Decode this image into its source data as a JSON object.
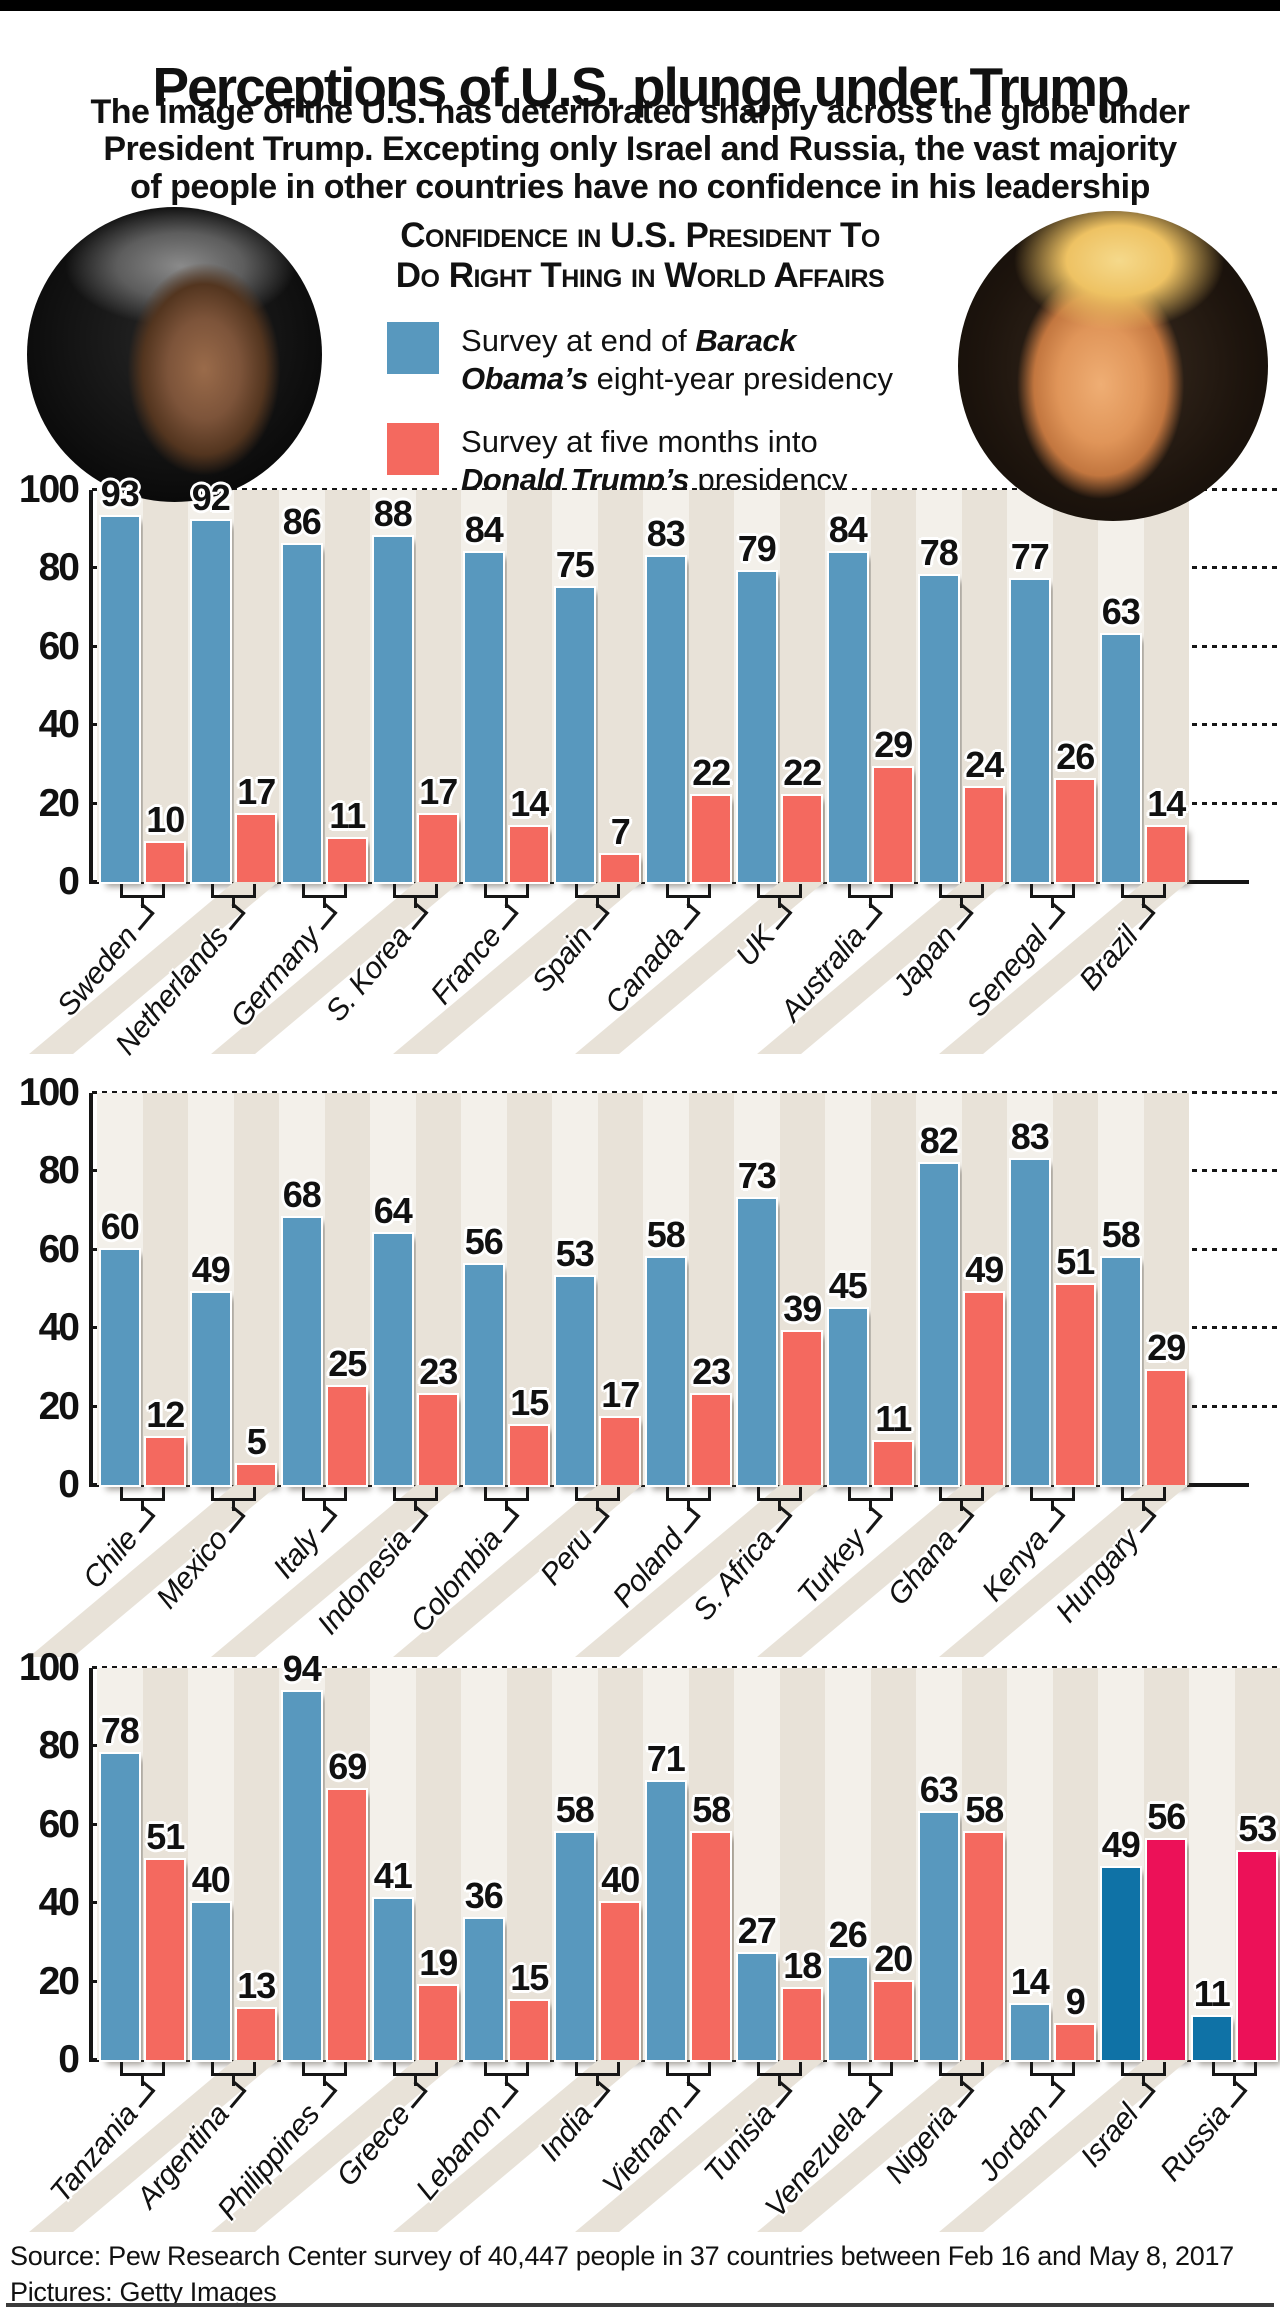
{
  "header": {
    "title": "Perceptions of U.S. plunge under Trump",
    "subtitle_lines": [
      "The image of the U.S. has deteriorated sharply across the globe under",
      "President Trump. Excepting only Israel and Russia, the vast majority",
      "of people in other countries have no confidence in his leadership"
    ],
    "chart_heading_line1": "Confidence in U.S. President To",
    "chart_heading_line2": "Do Right Thing in World Affairs",
    "photo_left": "Barack Obama photo",
    "photo_right": "Donald Trump photo"
  },
  "legend": {
    "items": [
      {
        "swatch_color": "#5898BE",
        "line1": "Survey at end of",
        "line1_bold": "Barack",
        "line2_bold": "Obama’s",
        "line2": "eight-year presidency"
      },
      {
        "swatch_color": "#F4695F",
        "line1": "Survey at five months into",
        "line1_bold": "",
        "line2_bold": "Donald Trump’s",
        "line2": "presidency"
      }
    ]
  },
  "chart_data": [
    {
      "type": "bar",
      "title": "Confidence in U.S. president to do right thing in world affairs (panel 1)",
      "categories": [
        "Sweden",
        "Netherlands",
        "Germany",
        "S. Korea",
        "France",
        "Spain",
        "Canada",
        "UK",
        "Australia",
        "Japan",
        "Senegal",
        "Brazil"
      ],
      "series": [
        {
          "name": "Survey at end of Barack Obama’s eight-year presidency",
          "values": [
            93,
            92,
            86,
            88,
            84,
            75,
            83,
            79,
            84,
            78,
            77,
            63
          ]
        },
        {
          "name": "Survey at five months into Donald Trump’s presidency",
          "values": [
            10,
            17,
            11,
            17,
            14,
            7,
            22,
            22,
            29,
            24,
            26,
            14
          ]
        }
      ],
      "ylim": [
        0,
        100
      ],
      "yticks": [
        0,
        20,
        40,
        60,
        80,
        100
      ],
      "grid": "dotted horizontal",
      "legend_position": "top",
      "highlight_categories": []
    },
    {
      "type": "bar",
      "title": "Confidence in U.S. president to do right thing in world affairs (panel 2)",
      "categories": [
        "Chile",
        "Mexico",
        "Italy",
        "Indonesia",
        "Colombia",
        "Peru",
        "Poland",
        "S. Africa",
        "Turkey",
        "Ghana",
        "Kenya",
        "Hungary"
      ],
      "series": [
        {
          "name": "Survey at end of Barack Obama’s eight-year presidency",
          "values": [
            60,
            49,
            68,
            64,
            56,
            53,
            58,
            73,
            45,
            82,
            83,
            58
          ]
        },
        {
          "name": "Survey at five months into Donald Trump’s presidency",
          "values": [
            12,
            5,
            25,
            23,
            15,
            17,
            23,
            39,
            11,
            49,
            51,
            29
          ]
        }
      ],
      "ylim": [
        0,
        100
      ],
      "yticks": [
        0,
        20,
        40,
        60,
        80,
        100
      ],
      "grid": "dotted horizontal",
      "legend_position": "top",
      "highlight_categories": []
    },
    {
      "type": "bar",
      "title": "Confidence in U.S. president to do right thing in world affairs (panel 3)",
      "categories": [
        "Tanzania",
        "Argentina",
        "Philippines",
        "Greece",
        "Lebanon",
        "India",
        "Vietnam",
        "Tunisia",
        "Venezuela",
        "Nigeria",
        "Jordan",
        "Israel",
        "Russia"
      ],
      "series": [
        {
          "name": "Survey at end of Barack Obama’s eight-year presidency",
          "values": [
            78,
            40,
            94,
            41,
            36,
            58,
            71,
            27,
            26,
            63,
            14,
            49,
            11
          ]
        },
        {
          "name": "Survey at five months into Donald Trump’s presidency",
          "values": [
            51,
            13,
            69,
            19,
            15,
            40,
            58,
            18,
            20,
            58,
            9,
            56,
            53
          ]
        }
      ],
      "ylim": [
        0,
        100
      ],
      "yticks": [
        0,
        20,
        40,
        60,
        80,
        100
      ],
      "grid": "dotted horizontal",
      "legend_position": "top",
      "highlight_categories": [
        "Israel",
        "Russia"
      ]
    }
  ],
  "style": {
    "colors": {
      "obama_bar": "#5898BE",
      "trump_bar": "#F4695F",
      "obama_highlight": "#0F72A6",
      "trump_highlight": "#EC1158",
      "band_light": "#F3F0EA",
      "band_beige": "#E8E2D8",
      "stripe": "#E8E2D8",
      "ink": "#161616"
    }
  },
  "footer": {
    "source": "Source: Pew Research Center survey of 40,447 people in 37 countries between Feb 16 and May 8, 2017",
    "pictures": "Pictures: Getty Images"
  }
}
